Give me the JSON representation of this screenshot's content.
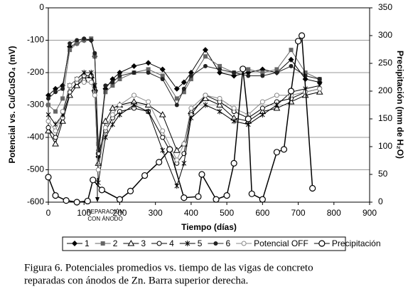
{
  "chart_data": {
    "type": "line",
    "x_label": "Tiempo (días)",
    "y_label": "Potencial vs. Cu/CuSO₄ (mV)",
    "y2_label": "Precipitación (mm de H₂O)",
    "annotation": [
      "REPARACIÓN",
      "CON ÁNODO"
    ],
    "caption": [
      "Figura 6. Potenciales promedios vs. tiempo de las vigas de concreto",
      "reparadas  con ánodos de Zn.  Barra superior derecha."
    ],
    "xlim": [
      0,
      900
    ],
    "xticks": [
      0,
      100,
      200,
      300,
      400,
      500,
      600,
      700,
      800,
      900
    ],
    "ylim": [
      -600,
      0
    ],
    "yticks": [
      -600,
      -500,
      -400,
      -300,
      -200,
      -100,
      0
    ],
    "y2lim": [
      0,
      350
    ],
    "y2ticks": [
      0,
      50,
      100,
      150,
      200,
      250,
      300,
      350
    ],
    "grid": true,
    "x": [
      0,
      20,
      40,
      60,
      80,
      100,
      120,
      130,
      140,
      160,
      180,
      200,
      240,
      280,
      320,
      360,
      380,
      400,
      440,
      480,
      520,
      560,
      600,
      640,
      680,
      720,
      760
    ],
    "series": [
      {
        "name": "1",
        "color": "#000000",
        "marker": "diamond",
        "values": [
          -270,
          -250,
          -240,
          -120,
          -110,
          -100,
          -100,
          -150,
          -460,
          -250,
          -220,
          -200,
          -180,
          -170,
          -190,
          -250,
          -230,
          -200,
          -130,
          -200,
          -210,
          -200,
          -190,
          -200,
          -160,
          -220,
          -230
        ]
      },
      {
        "name": "2",
        "color": "#666666",
        "marker": "square",
        "values": [
          -300,
          -320,
          -280,
          -130,
          -110,
          -100,
          -95,
          -150,
          -420,
          -260,
          -240,
          -220,
          -200,
          -190,
          -210,
          -280,
          -260,
          -220,
          -150,
          -180,
          -200,
          -190,
          -200,
          -190,
          -130,
          -200,
          -220
        ]
      },
      {
        "name": "3",
        "color": "#000000",
        "marker": "triangle",
        "values": [
          -380,
          -420,
          -350,
          -270,
          -240,
          -220,
          -210,
          -250,
          -480,
          -350,
          -310,
          -300,
          -290,
          -300,
          -330,
          -440,
          -420,
          -320,
          -280,
          -300,
          -340,
          -350,
          -320,
          -310,
          -290,
          -270,
          -260
        ]
      },
      {
        "name": "4",
        "color": "#000000",
        "marker": "circle-open",
        "values": [
          -370,
          -400,
          -340,
          -260,
          -230,
          -210,
          -210,
          -260,
          -450,
          -380,
          -340,
          -320,
          -310,
          -320,
          -400,
          -480,
          -450,
          -330,
          -270,
          -290,
          -320,
          -340,
          -310,
          -290,
          -280,
          -260,
          -250
        ]
      },
      {
        "name": "5",
        "color": "#000000",
        "marker": "star",
        "values": [
          -330,
          -360,
          -330,
          -240,
          -220,
          -200,
          -200,
          -240,
          -540,
          -400,
          -360,
          -330,
          -300,
          -320,
          -440,
          -550,
          -480,
          -340,
          -300,
          -320,
          -350,
          -360,
          -330,
          -300,
          -260,
          -250,
          -240
        ]
      },
      {
        "name": "6",
        "color": "#222222",
        "marker": "circle",
        "values": [
          -280,
          -260,
          -250,
          -110,
          -100,
          -95,
          -100,
          -140,
          -440,
          -240,
          -230,
          -210,
          -200,
          -200,
          -220,
          -300,
          -250,
          -210,
          -180,
          -190,
          -200,
          -210,
          -210,
          -200,
          -180,
          -210,
          -220
        ]
      },
      {
        "name": "Potencial OFF",
        "color": "#888888",
        "marker": "circle-open",
        "values": [
          -350,
          -380,
          -320,
          -240,
          -220,
          -230,
          -230,
          -270,
          -500,
          -370,
          -330,
          -300,
          -270,
          -290,
          -380,
          -470,
          -420,
          -310,
          -270,
          -280,
          -310,
          -330,
          -290,
          -270,
          -270,
          -260,
          -250
        ]
      },
      {
        "name": "Precipitación",
        "color": "#000000",
        "marker": "circle-big",
        "axis": "y2",
        "x": [
          0,
          20,
          50,
          80,
          110,
          125,
          150,
          200,
          230,
          270,
          310,
          340,
          380,
          420,
          430,
          470,
          500,
          520,
          545,
          560,
          570,
          600,
          640,
          660,
          680,
          700,
          710,
          740
        ],
        "values": [
          45,
          12,
          3,
          0,
          2,
          40,
          22,
          5,
          20,
          48,
          72,
          95,
          8,
          10,
          50,
          5,
          12,
          70,
          240,
          150,
          15,
          5,
          90,
          95,
          200,
          290,
          300,
          25
        ]
      }
    ]
  }
}
